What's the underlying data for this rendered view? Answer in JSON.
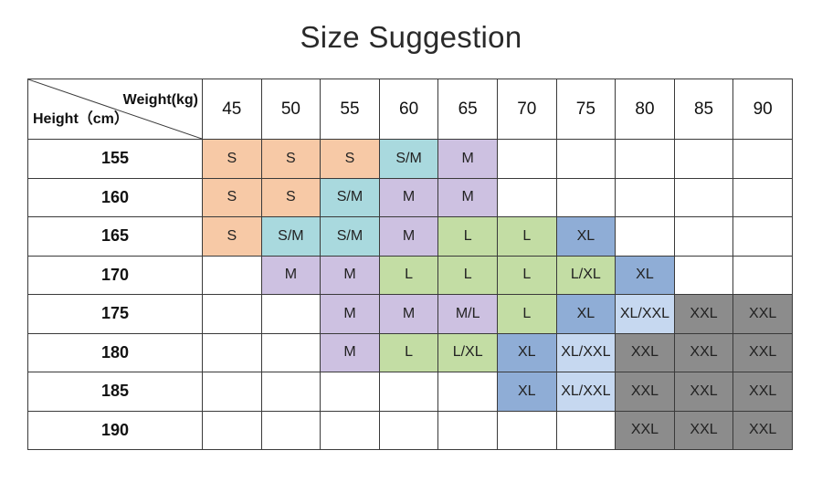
{
  "title": "Size Suggestion",
  "chart_data": {
    "type": "table",
    "title": "Size Suggestion",
    "corner_weight_label": "Weight(kg)",
    "corner_height_label": "Height（cm）",
    "weights": [
      "45",
      "50",
      "55",
      "60",
      "65",
      "70",
      "75",
      "80",
      "85",
      "90"
    ],
    "rows": [
      {
        "height": "155",
        "sizes": [
          "S",
          "S",
          "S",
          "S/M",
          "M",
          "",
          "",
          "",
          "",
          ""
        ]
      },
      {
        "height": "160",
        "sizes": [
          "S",
          "S",
          "S/M",
          "M",
          "M",
          "",
          "",
          "",
          "",
          ""
        ]
      },
      {
        "height": "165",
        "sizes": [
          "S",
          "S/M",
          "S/M",
          "M",
          "L",
          "L",
          "XL",
          "",
          "",
          ""
        ]
      },
      {
        "height": "170",
        "sizes": [
          "",
          "M",
          "M",
          "L",
          "L",
          "L",
          "L/XL",
          "XL",
          "",
          ""
        ]
      },
      {
        "height": "175",
        "sizes": [
          "",
          "",
          "M",
          "M",
          "M/L",
          "L",
          "XL",
          "XL/XXL",
          "XXL",
          "XXL"
        ]
      },
      {
        "height": "180",
        "sizes": [
          "",
          "",
          "M",
          "L",
          "L/XL",
          "XL",
          "XL/XXL",
          "XXL",
          "XXL",
          "XXL"
        ]
      },
      {
        "height": "185",
        "sizes": [
          "",
          "",
          "",
          "",
          "",
          "XL",
          "XL/XXL",
          "XXL",
          "XXL",
          "XXL"
        ]
      },
      {
        "height": "190",
        "sizes": [
          "",
          "",
          "",
          "",
          "",
          "",
          "",
          "XXL",
          "XXL",
          "XXL"
        ]
      }
    ],
    "colors": {
      "S": "#f7c9a6",
      "S/M": "#a9d9de",
      "M": "#cdc1e1",
      "M/L": "#c3dda4",
      "L": "#c3dda4",
      "L/XL": "#c3dda4",
      "XL": "#8fadd6",
      "XL/XXL": "#c6d8f0",
      "XXL": "#8c8c8c"
    },
    "cell_colors": [
      [
        "S",
        "S",
        "S",
        "S/M",
        "M",
        "",
        "",
        "",
        "",
        ""
      ],
      [
        "S",
        "S",
        "S/M",
        "M",
        "M",
        "",
        "",
        "",
        "",
        ""
      ],
      [
        "S",
        "S/M",
        "S/M",
        "M",
        "L",
        "L",
        "XL",
        "",
        "",
        ""
      ],
      [
        "",
        "M",
        "M",
        "L",
        "L",
        "L",
        "L",
        "XL",
        "",
        ""
      ],
      [
        "",
        "",
        "M",
        "M",
        "M",
        "L",
        "XL",
        "XL/XXL",
        "XXL",
        "XXL"
      ],
      [
        "",
        "",
        "M",
        "L",
        "L",
        "XL",
        "XL/XXL",
        "XXL",
        "XXL",
        "XXL"
      ],
      [
        "",
        "",
        "",
        "",
        "",
        "XL",
        "XL/XXL",
        "XXL",
        "XXL",
        "XXL"
      ],
      [
        "",
        "",
        "",
        "",
        "",
        "",
        "",
        "XXL",
        "XXL",
        "XXL"
      ]
    ]
  }
}
